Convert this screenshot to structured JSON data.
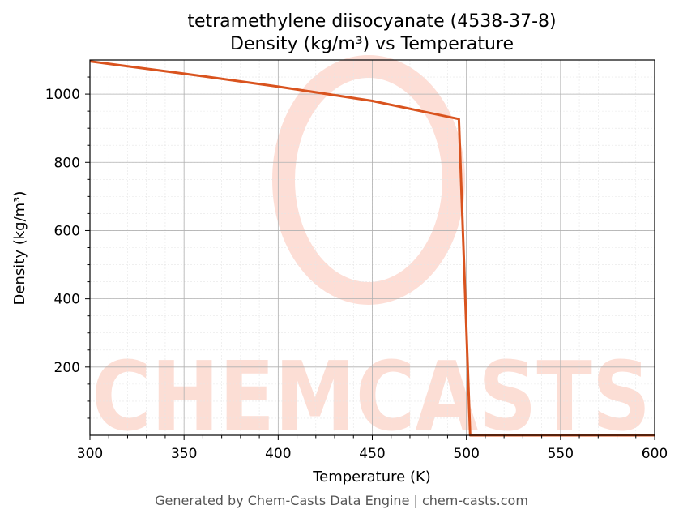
{
  "chart_data": {
    "type": "line",
    "title": "tetramethylene diisocyanate (4538-37-8)",
    "subtitle": "Density (kg/m³) vs Temperature",
    "xlabel": "Temperature (K)",
    "ylabel": "Density (kg/m³)",
    "xlim": [
      300,
      600
    ],
    "ylim": [
      0,
      1100
    ],
    "xticks": [
      300,
      350,
      400,
      450,
      500,
      550,
      600
    ],
    "yticks": [
      200,
      400,
      600,
      800,
      1000
    ],
    "grid": true,
    "series": [
      {
        "color": "#d9531e",
        "x": [
          300,
          350,
          400,
          450,
          496,
          502,
          600
        ],
        "y": [
          1096,
          1060,
          1022,
          980,
          927,
          0,
          0
        ]
      }
    ]
  },
  "watermark": {
    "text": "CHEMCASTS",
    "color": "#fcd3c8"
  },
  "footer": "Generated by Chem-Casts Data Engine | chem-casts.com"
}
